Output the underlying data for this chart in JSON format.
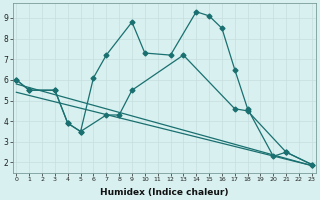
{
  "xlabel": "Humidex (Indice chaleur)",
  "line1_x": [
    0,
    1,
    3,
    4,
    5,
    6,
    7,
    9,
    10,
    12,
    14,
    15,
    16,
    17,
    18,
    20,
    21,
    23
  ],
  "line1_y": [
    6.0,
    5.5,
    5.5,
    3.9,
    3.5,
    6.1,
    7.2,
    8.8,
    7.3,
    7.2,
    9.3,
    9.1,
    8.5,
    6.5,
    4.6,
    2.3,
    2.5,
    1.9
  ],
  "line2_x": [
    0,
    1,
    3,
    4,
    5,
    7,
    8,
    9,
    13,
    17,
    18,
    21,
    23
  ],
  "line2_y": [
    6.0,
    5.5,
    5.5,
    3.9,
    3.5,
    4.3,
    4.3,
    5.5,
    7.2,
    4.6,
    4.5,
    2.5,
    1.9
  ],
  "line3_x": [
    0,
    23
  ],
  "line3_y": [
    5.8,
    1.85
  ],
  "line4_x": [
    0,
    23
  ],
  "line4_y": [
    5.4,
    1.85
  ],
  "line_color": "#1a7070",
  "bg_color": "#d8f0f0",
  "grid_color": "#c8dede",
  "ylim": [
    1.5,
    9.7
  ],
  "xlim": [
    -0.3,
    23.3
  ],
  "yticks": [
    2,
    3,
    4,
    5,
    6,
    7,
    8,
    9
  ],
  "xticks": [
    0,
    1,
    2,
    3,
    4,
    5,
    6,
    7,
    8,
    9,
    10,
    11,
    12,
    13,
    14,
    15,
    16,
    17,
    18,
    19,
    20,
    21,
    22,
    23
  ]
}
